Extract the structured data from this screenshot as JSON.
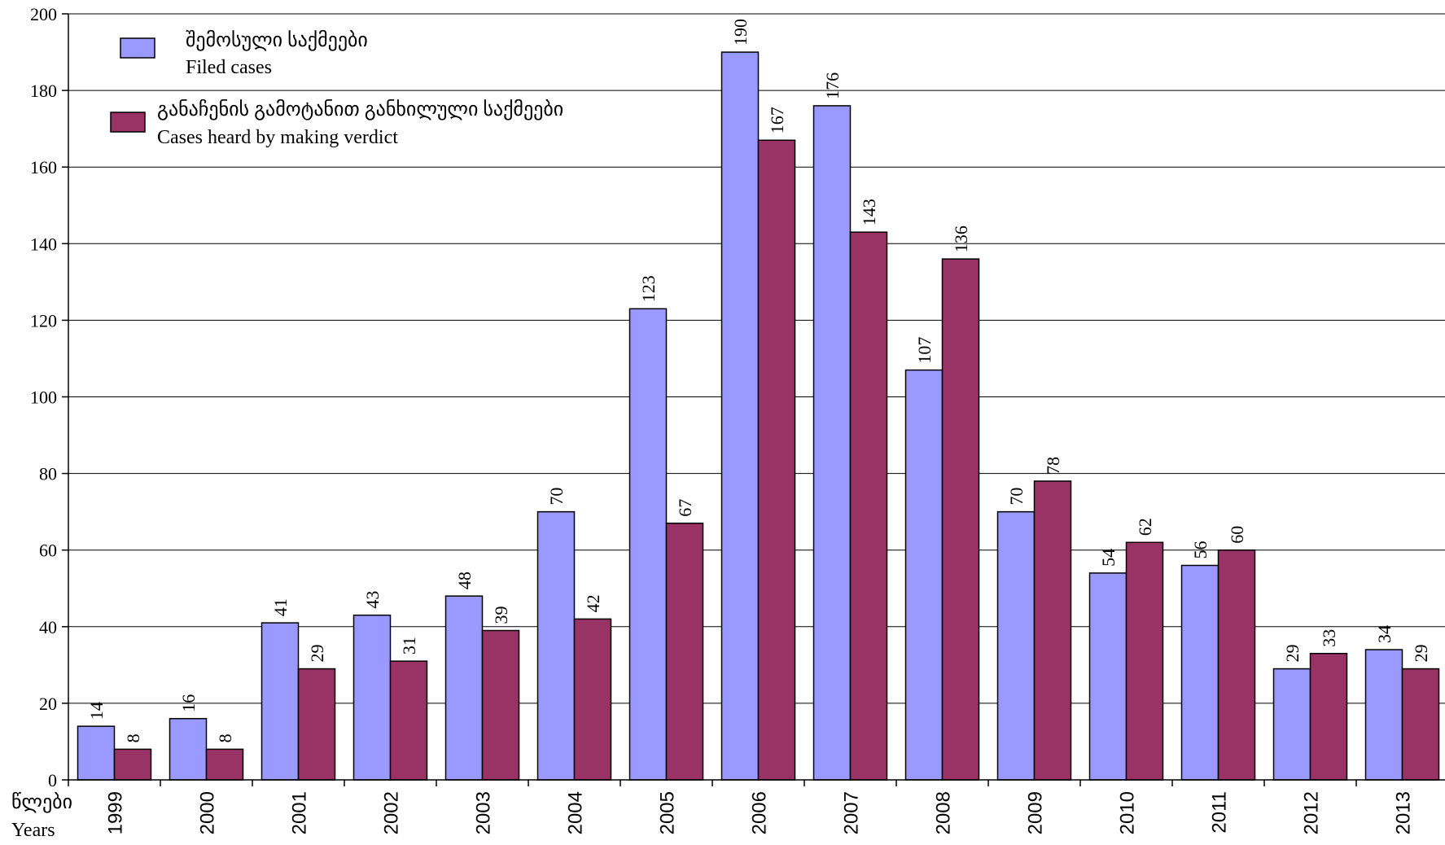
{
  "chart_data": {
    "type": "bar",
    "categories": [
      "1999",
      "2000",
      "2001",
      "2002",
      "2003",
      "2004",
      "2005",
      "2006",
      "2007",
      "2008",
      "2009",
      "2010",
      "2011",
      "2012",
      "2013"
    ],
    "series": [
      {
        "name_ka": "შემოსული საქმეები",
        "name": "Filed cases",
        "color": "#9999ff",
        "values": [
          14,
          16,
          41,
          43,
          48,
          70,
          123,
          190,
          176,
          107,
          70,
          54,
          56,
          29,
          34
        ]
      },
      {
        "name_ka": "განაჩენის გამოტანით განხილული საქმეები",
        "name": "Cases heard by making verdict",
        "color": "#993366",
        "values": [
          8,
          8,
          29,
          31,
          39,
          42,
          67,
          167,
          143,
          136,
          78,
          62,
          60,
          33,
          29
        ]
      }
    ],
    "ylim": [
      0,
      200
    ],
    "yticks": [
      "0",
      "20",
      "40",
      "60",
      "80",
      "100",
      "120",
      "140",
      "160",
      "180",
      "200"
    ],
    "xlabel_ka": "წლები",
    "xlabel": "Years",
    "grid": true,
    "legend_position": "top-left"
  }
}
